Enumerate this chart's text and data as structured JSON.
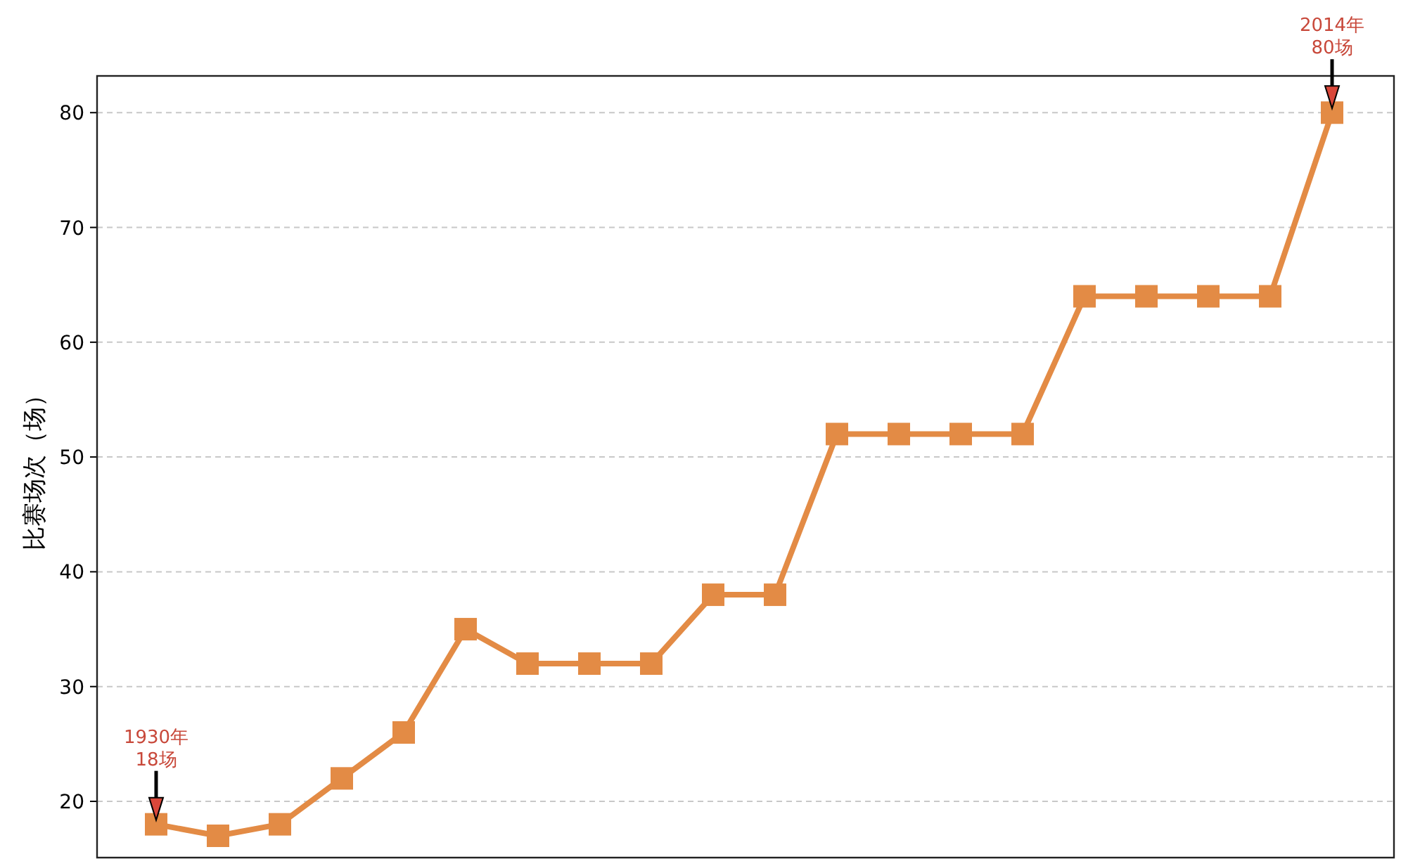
{
  "chart_data": {
    "type": "line",
    "ylabel": "比赛场次（场）",
    "categories": [
      null,
      null,
      null,
      null,
      null,
      null,
      null,
      null,
      null,
      null,
      null,
      null,
      null,
      null,
      null,
      null,
      null,
      null,
      null,
      null
    ],
    "series": [
      {
        "color": "#e38b45",
        "values": [
          18,
          17,
          18,
          22,
          26,
          35,
          32,
          32,
          32,
          38,
          38,
          52,
          52,
          52,
          52,
          64,
          64,
          64,
          64,
          80
        ]
      }
    ],
    "ylim": [
      15.1,
      83.2
    ],
    "yticks": [
      20,
      30,
      40,
      50,
      60,
      70,
      80
    ],
    "tick_labels": "y",
    "grid": "y",
    "marker": "square",
    "line_style": "solid",
    "annotations": [
      {
        "text": "1930年\n18场",
        "y": 18
      },
      {
        "text": "2014年\n80场",
        "y": 80
      }
    ]
  }
}
